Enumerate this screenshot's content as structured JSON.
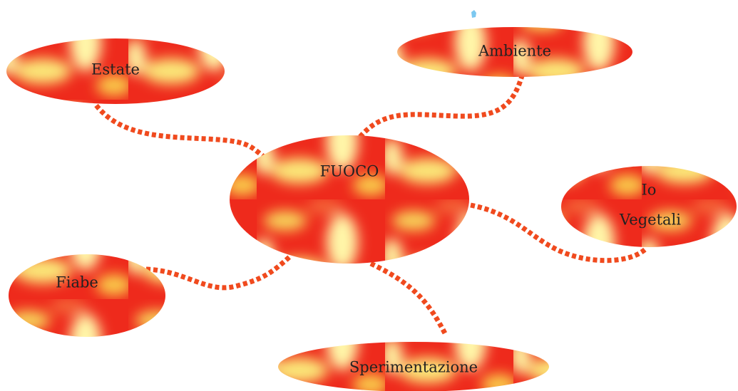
{
  "nodes": [
    {
      "lines": [
        "FUOCO"
      ]
    },
    {
      "lines": [
        "Estate"
      ]
    },
    {
      "lines": [
        "Ambiente"
      ]
    },
    {
      "lines": [
        "Io",
        "Vegetali"
      ]
    },
    {
      "lines": [
        "Fiabe"
      ]
    },
    {
      "lines": [
        "Sperimentazione"
      ]
    }
  ]
}
